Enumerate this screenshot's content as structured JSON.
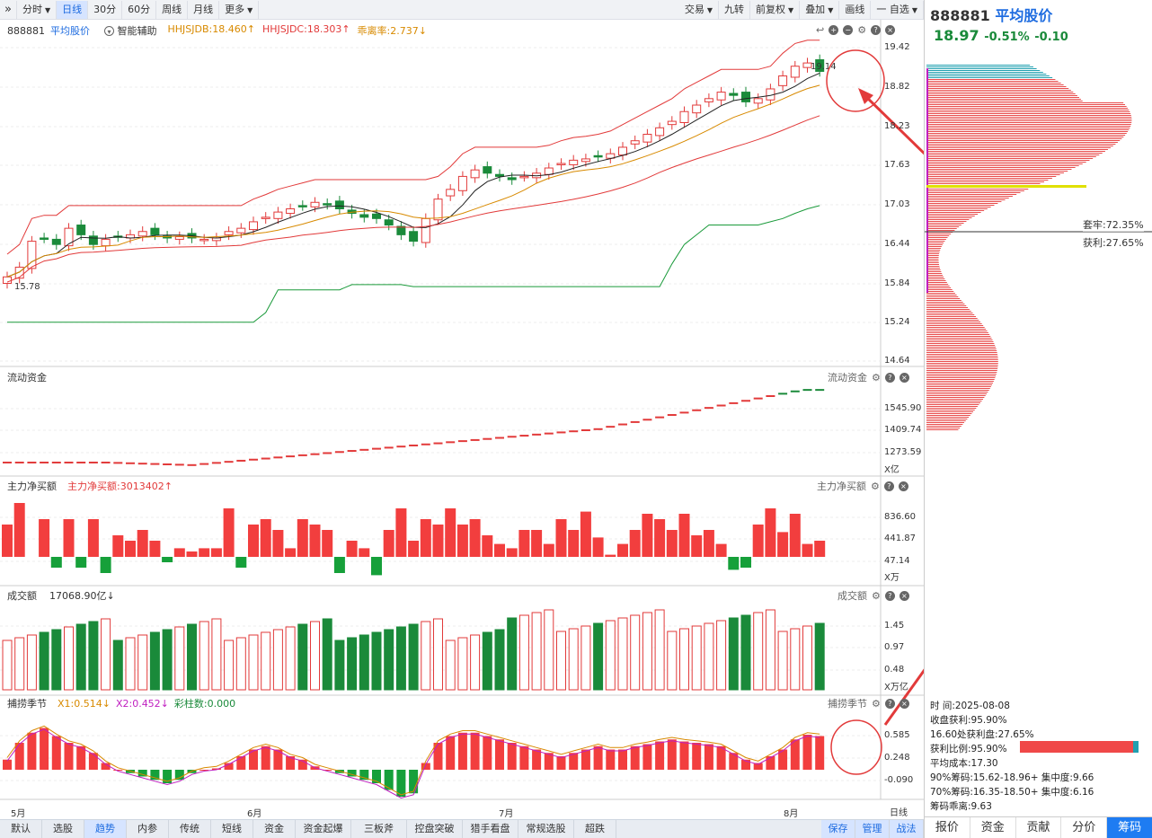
{
  "toolbar": {
    "left": [
      {
        "label": "分时",
        "dropdown": true
      },
      {
        "label": "日线",
        "active": true
      },
      {
        "label": "30分"
      },
      {
        "label": "60分"
      },
      {
        "label": "周线"
      },
      {
        "label": "月线"
      },
      {
        "label": "更多",
        "dropdown": true
      }
    ],
    "right": [
      {
        "label": "交易",
        "dropdown": true
      },
      {
        "label": "九转"
      },
      {
        "label": "前复权",
        "dropdown": true
      },
      {
        "label": "叠加",
        "dropdown": true
      },
      {
        "label": "画线"
      },
      {
        "label": "一 自选",
        "dropdown": true
      }
    ],
    "collapse": "»"
  },
  "main": {
    "code": "888881",
    "name": "平均股价",
    "assist": "智能辅助",
    "indicators": [
      {
        "text": "HHJSJDB:18.460↑",
        "color": "#d88a00"
      },
      {
        "text": "HHJSJDC:18.303↑",
        "color": "#e23a3a"
      },
      {
        "text": "乖离率:2.737↓",
        "color": "#d88a00"
      }
    ],
    "y_ticks": [
      "19.42",
      "18.82",
      "18.23",
      "17.63",
      "17.03",
      "16.44",
      "15.84",
      "15.24",
      "14.64"
    ],
    "high_label": "19.14",
    "low_label": "15.78"
  },
  "flow": {
    "title": "流动资金",
    "title_r": "流动资金",
    "y_ticks": [
      "1545.90",
      "1409.74",
      "1273.59"
    ],
    "unit": "X亿"
  },
  "mainnet": {
    "title": "主力净买额",
    "value": "主力净买额:3013402↑",
    "title_r": "主力净买额",
    "y_ticks": [
      "836.60",
      "441.87",
      "47.14"
    ],
    "unit": "X万"
  },
  "volume": {
    "title": "成交额",
    "value": "17068.90亿↓",
    "title_r": "成交额",
    "y_ticks": [
      "1.45",
      "0.97",
      "0.48"
    ],
    "unit": "X万亿"
  },
  "season": {
    "title": "捕捞季节",
    "x1": "X1:0.514↓",
    "x2": "X2:0.452↓",
    "bars": "彩柱数:0.000",
    "title_r": "捕捞季节",
    "y_ticks": [
      "0.585",
      "0.248",
      "-0.090"
    ]
  },
  "x_axis": [
    "5月",
    "6月",
    "7月",
    "8月"
  ],
  "x_axis_r": "日线",
  "bottom_tabs": [
    "默认",
    "选股",
    "趋势",
    "内参",
    "传统",
    "短线",
    "资金",
    "资金起爆",
    "三板斧",
    "控盘突破",
    "猎手看盘",
    "常规选股",
    "超跌"
  ],
  "bottom_active": "趋势",
  "bottom_right": [
    "保存",
    "管理",
    "战法"
  ],
  "right_panel": {
    "code": "888881",
    "name": "平均股价",
    "price": "18.97",
    "pct": "-0.51%",
    "chg": "-0.10",
    "trapped": "套牢:72.35%",
    "profit": "获利:27.65%",
    "stats": [
      {
        "k": "时    间:",
        "v": "2025-08-08"
      },
      {
        "k": "收盘获利:",
        "v": "95.90%"
      },
      {
        "k": "16.60处获利盘:",
        "v": "27.65%"
      },
      {
        "k": "获利比例:",
        "v": "95.90%"
      },
      {
        "k": "平均成本:",
        "v": "17.30"
      },
      {
        "k": "90%筹码:",
        "v": "15.62-18.96+ 集中度:9.66"
      },
      {
        "k": "70%筹码:",
        "v": "16.35-18.50+ 集中度:6.16"
      },
      {
        "k": "筹码乖离:",
        "v": "9.63"
      }
    ],
    "tabs": [
      "报价",
      "资金",
      "贡献",
      "分价",
      "筹码"
    ],
    "active_tab": "筹码"
  },
  "colors": {
    "up": "#e23a3a",
    "down": "#1a8a3a",
    "orange": "#d88a00",
    "magenta": "#c020c0",
    "blue": "#1e6ce0"
  }
}
